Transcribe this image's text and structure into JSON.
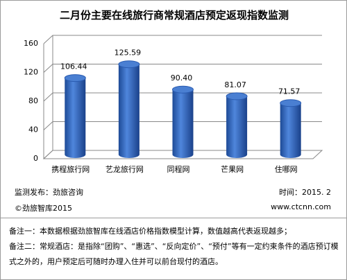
{
  "chart_data": {
    "type": "bar",
    "title": "二月份主要在线旅行商常规酒店预定返现指数监测",
    "categories": [
      "携程旅行网",
      "艺龙旅行网",
      "同程网",
      "芒果网",
      "住哪网"
    ],
    "values": [
      106.44,
      125.59,
      90.4,
      81.07,
      71.57
    ],
    "value_labels": [
      "106.44",
      "125.59",
      "90.40",
      "81.07",
      "71.57"
    ],
    "color": "#2f66c0",
    "ylim": [
      0,
      160
    ],
    "yticks": [
      0,
      40,
      80,
      120,
      160
    ],
    "grid": true
  },
  "footer": {
    "publisher": "监测发布：劲旅咨询",
    "date": "时间：2015. 2",
    "copyright": "©劲旅智库2015",
    "website": "www.ctcnn.com"
  },
  "notes": [
    "备注一：本数据根据劲旅智库在线酒店价格指数模型计算，数值越高代表返现越多；",
    "备注二：常规酒店：是指除“团购”、“惠选”、“反向定价”、“预付”等有一定约束条件的酒店预订模式之外的，用户预定后可随时办理入住并可以前台现付的酒店。"
  ]
}
